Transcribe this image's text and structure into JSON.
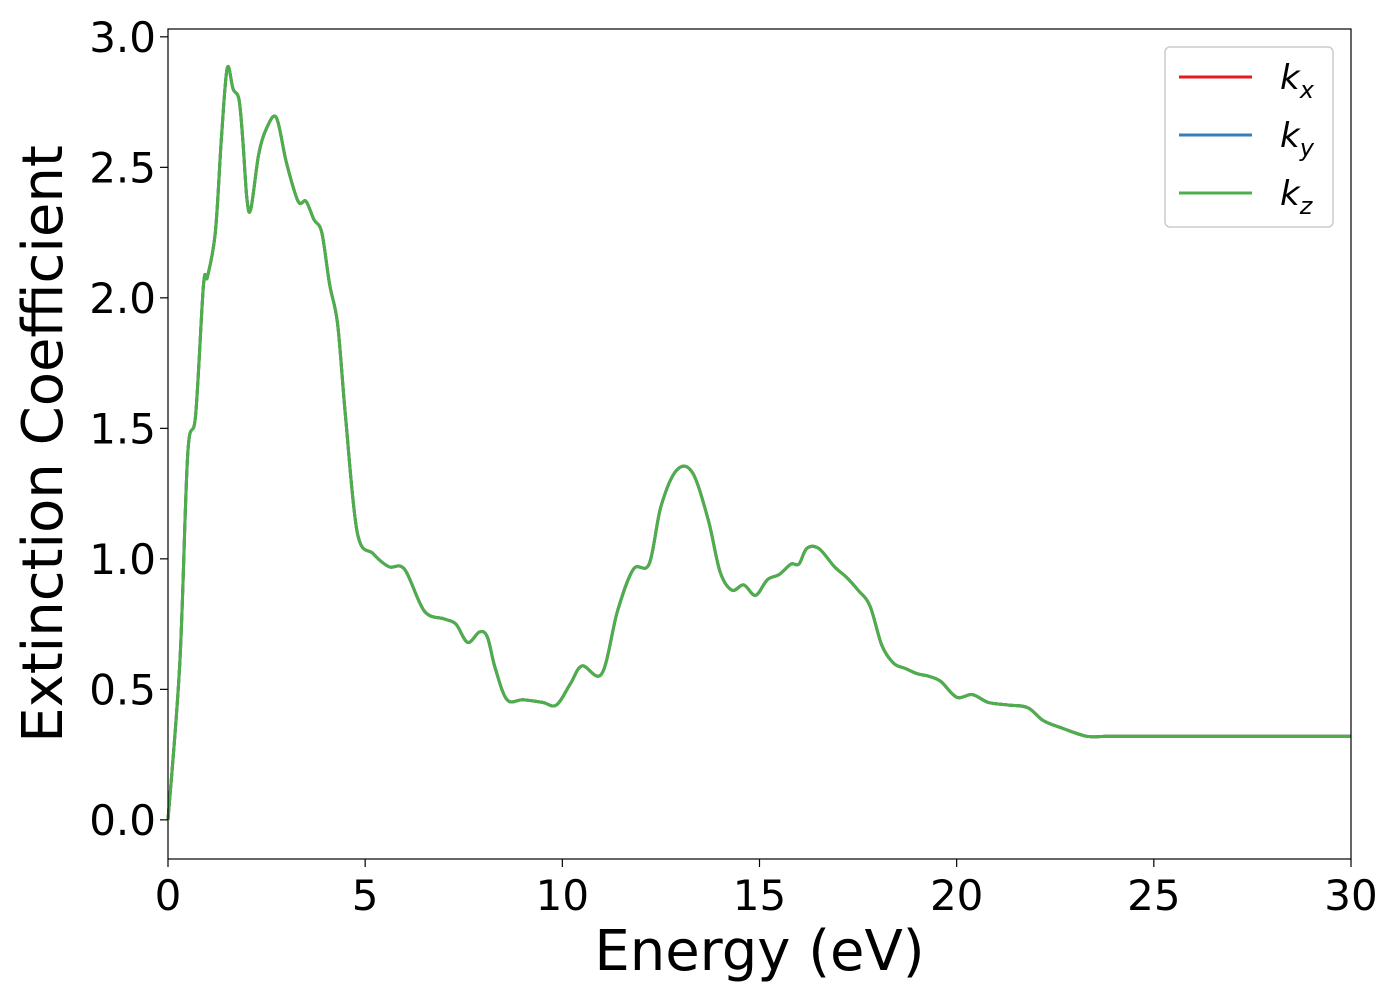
{
  "chart_data": {
    "type": "line",
    "xlabel": "Energy (eV)",
    "ylabel": "Extinction Coefficient",
    "xlim": [
      0,
      30
    ],
    "ylim": [
      -0.15,
      3.03
    ],
    "xticks": [
      "0",
      "5",
      "10",
      "15",
      "20",
      "25",
      "30"
    ],
    "yticks": [
      "0.0",
      "0.5",
      "1.0",
      "1.5",
      "2.0",
      "2.5",
      "3.0"
    ],
    "grid": false,
    "legend_position": "top-right",
    "x": [
      0,
      0.3,
      0.5,
      0.7,
      0.9,
      1.0,
      1.2,
      1.35,
      1.5,
      1.65,
      1.8,
      1.9,
      2.0,
      2.1,
      2.3,
      2.5,
      2.75,
      3.0,
      3.3,
      3.5,
      3.7,
      3.9,
      4.1,
      4.3,
      4.5,
      4.8,
      5.2,
      5.6,
      6.0,
      6.5,
      7.0,
      7.3,
      7.6,
      7.9,
      8.1,
      8.3,
      8.6,
      9.0,
      9.5,
      9.85,
      10.2,
      10.5,
      11.0,
      11.4,
      11.8,
      12.2,
      12.5,
      12.9,
      13.3,
      13.7,
      14.0,
      14.3,
      14.6,
      14.9,
      15.2,
      15.5,
      15.8,
      16.0,
      16.2,
      16.5,
      16.9,
      17.2,
      17.5,
      17.8,
      18.1,
      18.4,
      18.7,
      19.0,
      19.3,
      19.6,
      20.0,
      20.4,
      20.8,
      21.3,
      21.8,
      22.2,
      22.7,
      23.3,
      23.8,
      24.4,
      25.0,
      25.5,
      26.0,
      26.5,
      27.0,
      27.5,
      28.0,
      28.5,
      29.0,
      29.5,
      30.0
    ],
    "series": [
      {
        "name": "k_x",
        "color": "#e41a1c",
        "values": [
          0.0,
          0.6,
          1.4,
          1.55,
          2.05,
          2.08,
          2.25,
          2.6,
          2.88,
          2.8,
          2.76,
          2.6,
          2.38,
          2.34,
          2.55,
          2.65,
          2.69,
          2.52,
          2.37,
          2.37,
          2.3,
          2.25,
          2.05,
          1.9,
          1.55,
          1.1,
          1.02,
          0.97,
          0.96,
          0.8,
          0.77,
          0.75,
          0.68,
          0.72,
          0.7,
          0.58,
          0.46,
          0.46,
          0.45,
          0.44,
          0.52,
          0.59,
          0.56,
          0.8,
          0.96,
          0.98,
          1.2,
          1.34,
          1.33,
          1.15,
          0.95,
          0.88,
          0.9,
          0.86,
          0.92,
          0.94,
          0.98,
          0.98,
          1.04,
          1.04,
          0.97,
          0.93,
          0.88,
          0.82,
          0.67,
          0.6,
          0.58,
          0.56,
          0.55,
          0.53,
          0.47,
          0.48,
          0.45,
          0.44,
          0.43,
          0.38,
          0.35,
          0.32,
          0.32,
          0.32,
          0.32,
          0.32,
          0.32,
          0.32,
          0.32,
          0.32,
          0.32,
          0.32,
          0.32,
          0.32,
          0.32
        ]
      },
      {
        "name": "k_y",
        "color": "#377eb8",
        "values": [
          0.0,
          0.6,
          1.4,
          1.55,
          2.05,
          2.08,
          2.25,
          2.6,
          2.88,
          2.8,
          2.76,
          2.6,
          2.38,
          2.34,
          2.55,
          2.65,
          2.69,
          2.52,
          2.37,
          2.37,
          2.3,
          2.25,
          2.05,
          1.9,
          1.55,
          1.1,
          1.02,
          0.97,
          0.96,
          0.8,
          0.77,
          0.75,
          0.68,
          0.72,
          0.7,
          0.58,
          0.46,
          0.46,
          0.45,
          0.44,
          0.52,
          0.59,
          0.56,
          0.8,
          0.96,
          0.98,
          1.2,
          1.34,
          1.33,
          1.15,
          0.95,
          0.88,
          0.9,
          0.86,
          0.92,
          0.94,
          0.98,
          0.98,
          1.04,
          1.04,
          0.97,
          0.93,
          0.88,
          0.82,
          0.67,
          0.6,
          0.58,
          0.56,
          0.55,
          0.53,
          0.47,
          0.48,
          0.45,
          0.44,
          0.43,
          0.38,
          0.35,
          0.32,
          0.32,
          0.32,
          0.32,
          0.32,
          0.32,
          0.32,
          0.32,
          0.32,
          0.32,
          0.32,
          0.32,
          0.32,
          0.32
        ]
      },
      {
        "name": "k_z",
        "color": "#4daf4a",
        "values": [
          0.0,
          0.6,
          1.4,
          1.55,
          2.05,
          2.08,
          2.25,
          2.6,
          2.88,
          2.8,
          2.76,
          2.6,
          2.38,
          2.34,
          2.55,
          2.65,
          2.69,
          2.52,
          2.37,
          2.37,
          2.3,
          2.25,
          2.05,
          1.9,
          1.55,
          1.1,
          1.02,
          0.97,
          0.96,
          0.8,
          0.77,
          0.75,
          0.68,
          0.72,
          0.7,
          0.58,
          0.46,
          0.46,
          0.45,
          0.44,
          0.52,
          0.59,
          0.56,
          0.8,
          0.96,
          0.98,
          1.2,
          1.34,
          1.33,
          1.15,
          0.95,
          0.88,
          0.9,
          0.86,
          0.92,
          0.94,
          0.98,
          0.98,
          1.04,
          1.04,
          0.97,
          0.93,
          0.88,
          0.82,
          0.67,
          0.6,
          0.58,
          0.56,
          0.55,
          0.53,
          0.47,
          0.48,
          0.45,
          0.44,
          0.43,
          0.38,
          0.35,
          0.32,
          0.32,
          0.32,
          0.32,
          0.32,
          0.32,
          0.32,
          0.32,
          0.32,
          0.32,
          0.32,
          0.32,
          0.32,
          0.32
        ]
      }
    ],
    "legend": [
      {
        "base": "k",
        "sub": "x",
        "color": "#e41a1c"
      },
      {
        "base": "k",
        "sub": "y",
        "color": "#377eb8"
      },
      {
        "base": "k",
        "sub": "z",
        "color": "#4daf4a"
      }
    ]
  }
}
